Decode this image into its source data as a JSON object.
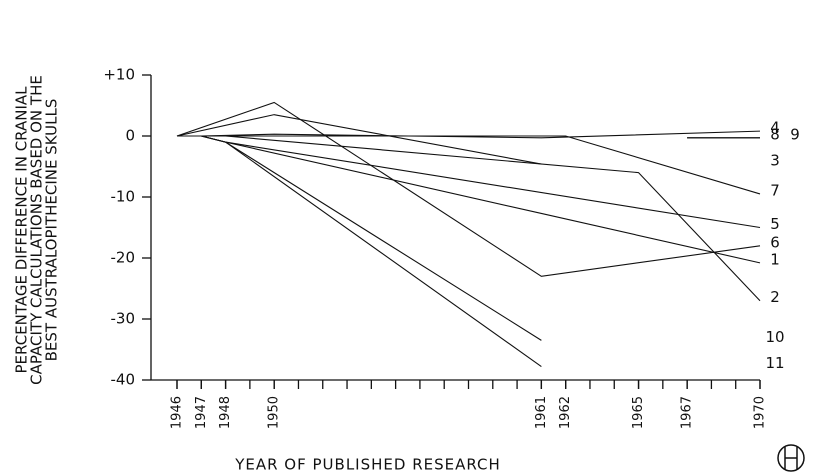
{
  "chart_data": {
    "type": "line",
    "y_label_lines": [
      "PERCENTAGE DIFFERENCE IN CRANIAL",
      "CAPACITY CALCULATIONS BASED ON THE",
      "BEST AUSTRALOPITHECINE SKULLS"
    ],
    "x_label": "YEAR OF PUBLISHED RESEARCH",
    "xlim": [
      1946,
      1970
    ],
    "xticks": [
      1946,
      1947,
      1948,
      1950,
      1961,
      1962,
      1965,
      1967,
      1970
    ],
    "ylim": [
      10,
      -40
    ],
    "yticks": [
      {
        "value": 10,
        "label": "+10"
      },
      0,
      -10,
      -20,
      -30,
      -40
    ],
    "color": "#111111",
    "series": [
      {
        "name": "1",
        "x": [
          1946,
          1947,
          1948,
          1961,
          1970
        ],
        "values": [
          0,
          0,
          -1,
          -12.7,
          -20.8
        ]
      },
      {
        "name": "2",
        "x": [
          1946,
          1947,
          1948,
          1965,
          1970
        ],
        "values": [
          0,
          0,
          0,
          -6,
          -27
        ]
      },
      {
        "name": "3",
        "x": [
          1946,
          1950,
          1961
        ],
        "values": [
          0,
          3.5,
          -4.6
        ]
      },
      {
        "name": "4",
        "x": [
          1946,
          1947,
          1950,
          1961,
          1970
        ],
        "values": [
          0,
          0,
          0.3,
          -0.3,
          0.8
        ]
      },
      {
        "name": "5",
        "x": [
          1946,
          1947,
          1948,
          1970
        ],
        "values": [
          0,
          0,
          -1,
          -15
        ]
      },
      {
        "name": "6",
        "x": [
          1946,
          1950,
          1961,
          1970
        ],
        "values": [
          0,
          5.5,
          -23,
          -18
        ]
      },
      {
        "name": "7",
        "x": [
          1946,
          1947,
          1948,
          1950,
          1962,
          1970
        ],
        "values": [
          0,
          0,
          0,
          0,
          0,
          -9.5
        ]
      },
      {
        "name": "8",
        "x": [
          1967,
          1970
        ],
        "values": [
          -0.3,
          -0.3
        ]
      },
      {
        "name": "9",
        "x": [
          1967,
          1970
        ],
        "values": [
          -0.3,
          -0.3
        ]
      },
      {
        "name": "10",
        "x": [
          1946,
          1947,
          1948,
          1961
        ],
        "values": [
          0,
          0,
          -1,
          -33.5
        ]
      },
      {
        "name": "11",
        "x": [
          1946,
          1947,
          1948,
          1961
        ],
        "values": [
          0,
          0,
          -1,
          -37.8
        ]
      }
    ]
  }
}
